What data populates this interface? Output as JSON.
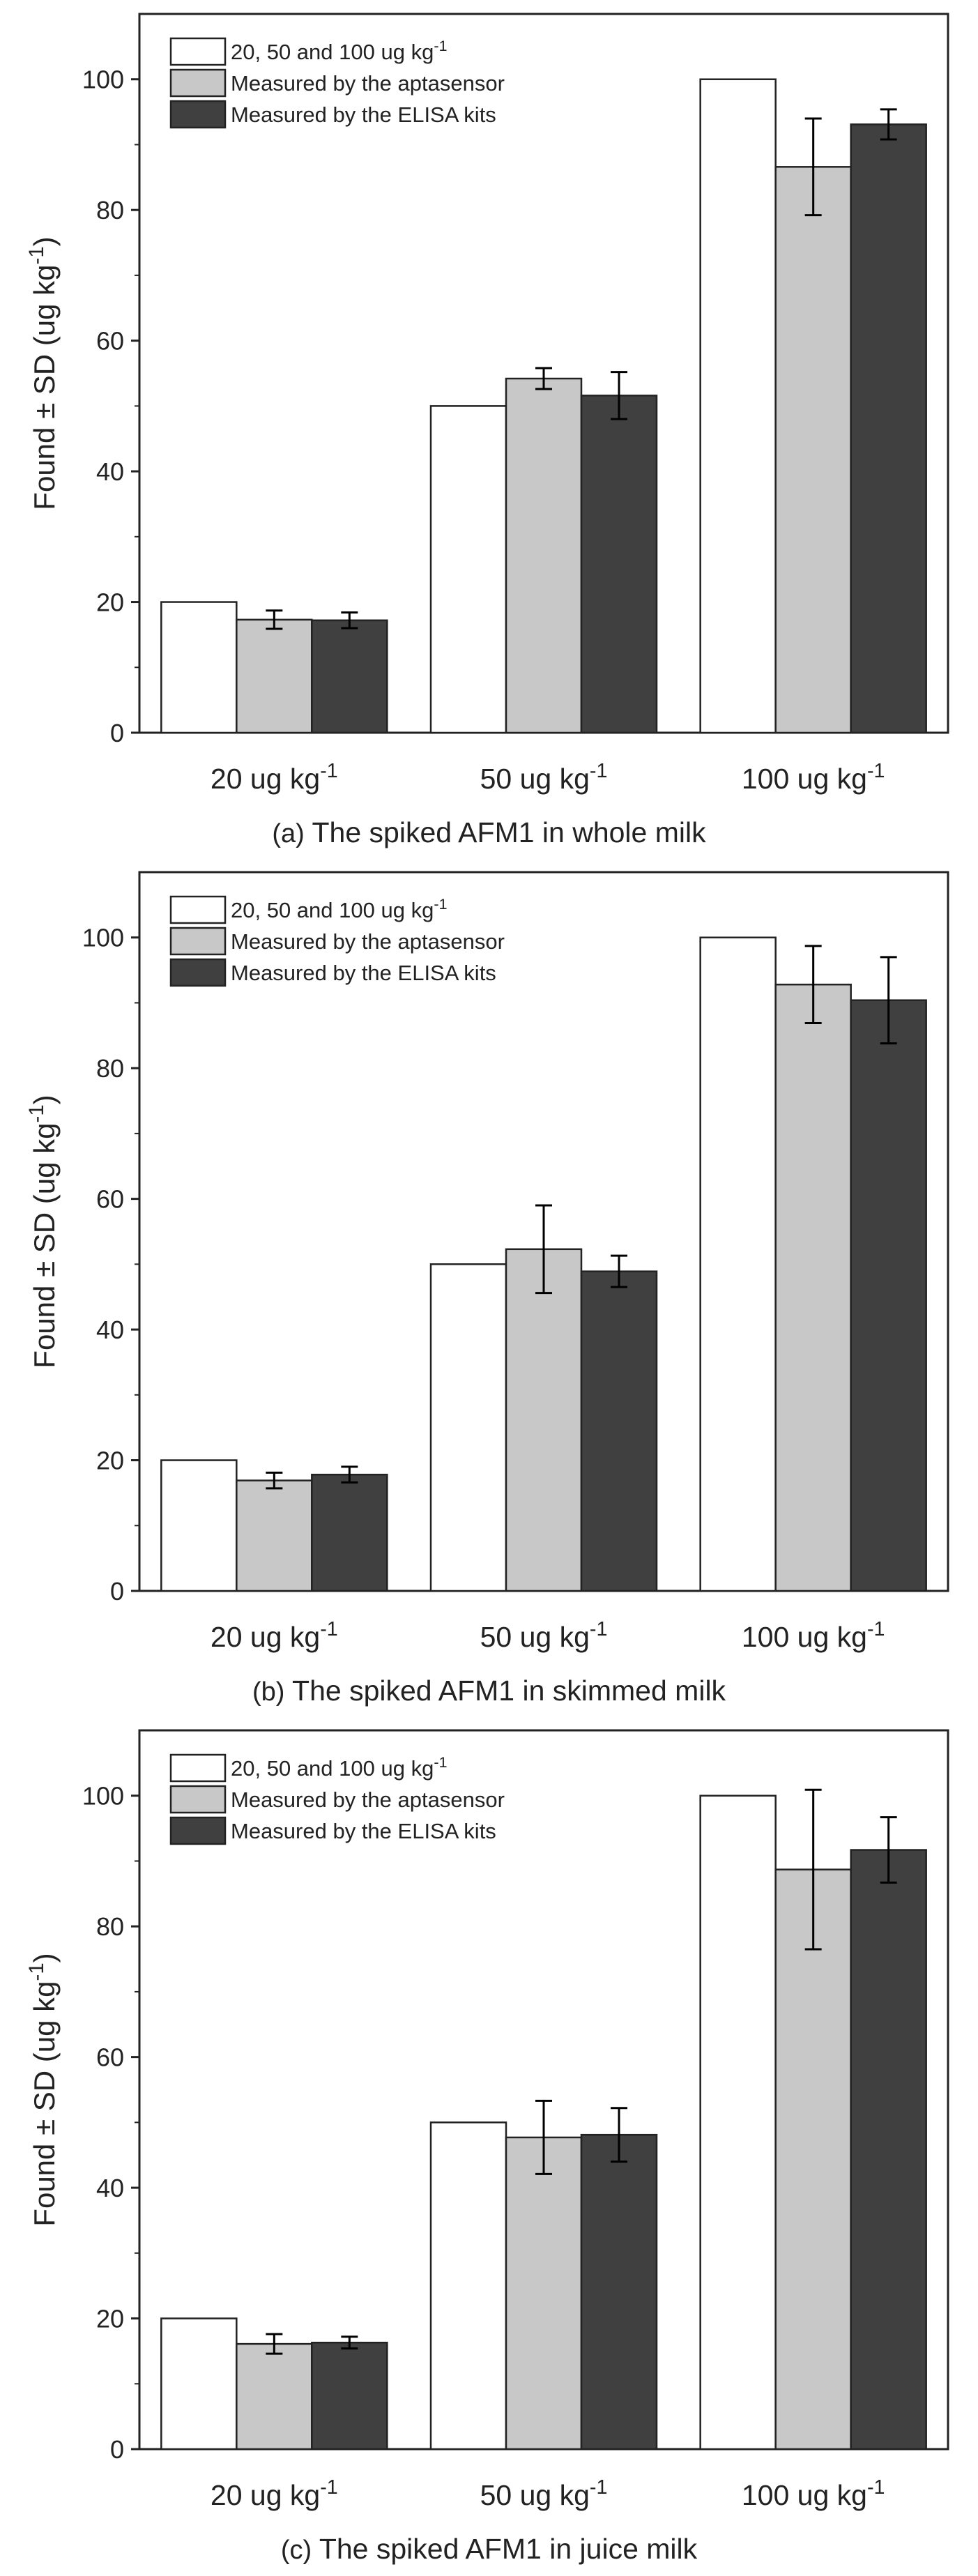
{
  "colors": {
    "white_bar": "#ffffff",
    "gray_bar": "#c8c8c8",
    "dark_bar": "#404040",
    "axis": "#222222"
  },
  "legend_entries": [
    {
      "text": "20, 50 and 100 ug kg",
      "sup": "-1"
    },
    {
      "text": "Measured by the aptasensor",
      "sup": ""
    },
    {
      "text": "Measured by the ELISA kits",
      "sup": ""
    }
  ],
  "chart_data": [
    {
      "type": "bar",
      "title": "",
      "xlabel": "",
      "ylabel": "Found ± SD (ug kg",
      "ylabel_sup": "-1",
      "ylim": [
        0,
        110
      ],
      "yticks": [
        0,
        20,
        40,
        60,
        80,
        100
      ],
      "categories": [
        {
          "text": "20 ug kg",
          "sup": "-1"
        },
        {
          "text": "50 ug kg",
          "sup": "-1"
        },
        {
          "text": "100 ug kg",
          "sup": "-1"
        }
      ],
      "series": [
        {
          "name": "20, 50 and 100 ug kg-1",
          "values": [
            20,
            50,
            100
          ],
          "errors": [
            0,
            0,
            0
          ]
        },
        {
          "name": "Measured by the aptasensor",
          "values": [
            17.3,
            54.2,
            86.6
          ],
          "errors": [
            1.4,
            1.6,
            7.4
          ]
        },
        {
          "name": "Measured by the ELISA kits",
          "values": [
            17.2,
            51.6,
            93.1
          ],
          "errors": [
            1.2,
            3.6,
            2.3
          ]
        }
      ],
      "caption_prefix": "(a)",
      "caption": " The spiked AFM1 in whole milk"
    },
    {
      "type": "bar",
      "title": "",
      "xlabel": "",
      "ylabel": "Found ± SD (ug kg",
      "ylabel_sup": "-1",
      "ylim": [
        0,
        110
      ],
      "yticks": [
        0,
        20,
        40,
        60,
        80,
        100
      ],
      "categories": [
        {
          "text": "20 ug kg",
          "sup": "-1"
        },
        {
          "text": "50 ug kg",
          "sup": "-1"
        },
        {
          "text": "100 ug kg",
          "sup": "-1"
        }
      ],
      "series": [
        {
          "name": "20, 50 and 100 ug kg-1",
          "values": [
            20,
            50,
            100
          ],
          "errors": [
            0,
            0,
            0
          ]
        },
        {
          "name": "Measured by the aptasensor",
          "values": [
            16.9,
            52.3,
            92.8
          ],
          "errors": [
            1.2,
            6.7,
            5.9
          ]
        },
        {
          "name": "Measured by the ELISA kits",
          "values": [
            17.8,
            48.9,
            90.4
          ],
          "errors": [
            1.2,
            2.4,
            6.6
          ]
        }
      ],
      "caption_prefix": "(b)",
      "caption": " The spiked AFM1 in skimmed milk"
    },
    {
      "type": "bar",
      "title": "",
      "xlabel": "",
      "ylabel": "Found ± SD (ug kg",
      "ylabel_sup": "-1",
      "ylim": [
        0,
        110
      ],
      "yticks": [
        0,
        20,
        40,
        60,
        80,
        100
      ],
      "categories": [
        {
          "text": "20 ug kg",
          "sup": "-1"
        },
        {
          "text": "50 ug kg",
          "sup": "-1"
        },
        {
          "text": "100 ug kg",
          "sup": "-1"
        }
      ],
      "series": [
        {
          "name": "20, 50 and 100 ug kg-1",
          "values": [
            20,
            50,
            100
          ],
          "errors": [
            0,
            0,
            0
          ]
        },
        {
          "name": "Measured by the aptasensor",
          "values": [
            16.1,
            47.7,
            88.7
          ],
          "errors": [
            1.5,
            5.6,
            12.2
          ]
        },
        {
          "name": "Measured by the ELISA kits",
          "values": [
            16.3,
            48.1,
            91.7
          ],
          "errors": [
            0.9,
            4.1,
            5.0
          ]
        }
      ],
      "caption_prefix": "(c)",
      "caption": " The spiked AFM1 in juice milk"
    }
  ]
}
